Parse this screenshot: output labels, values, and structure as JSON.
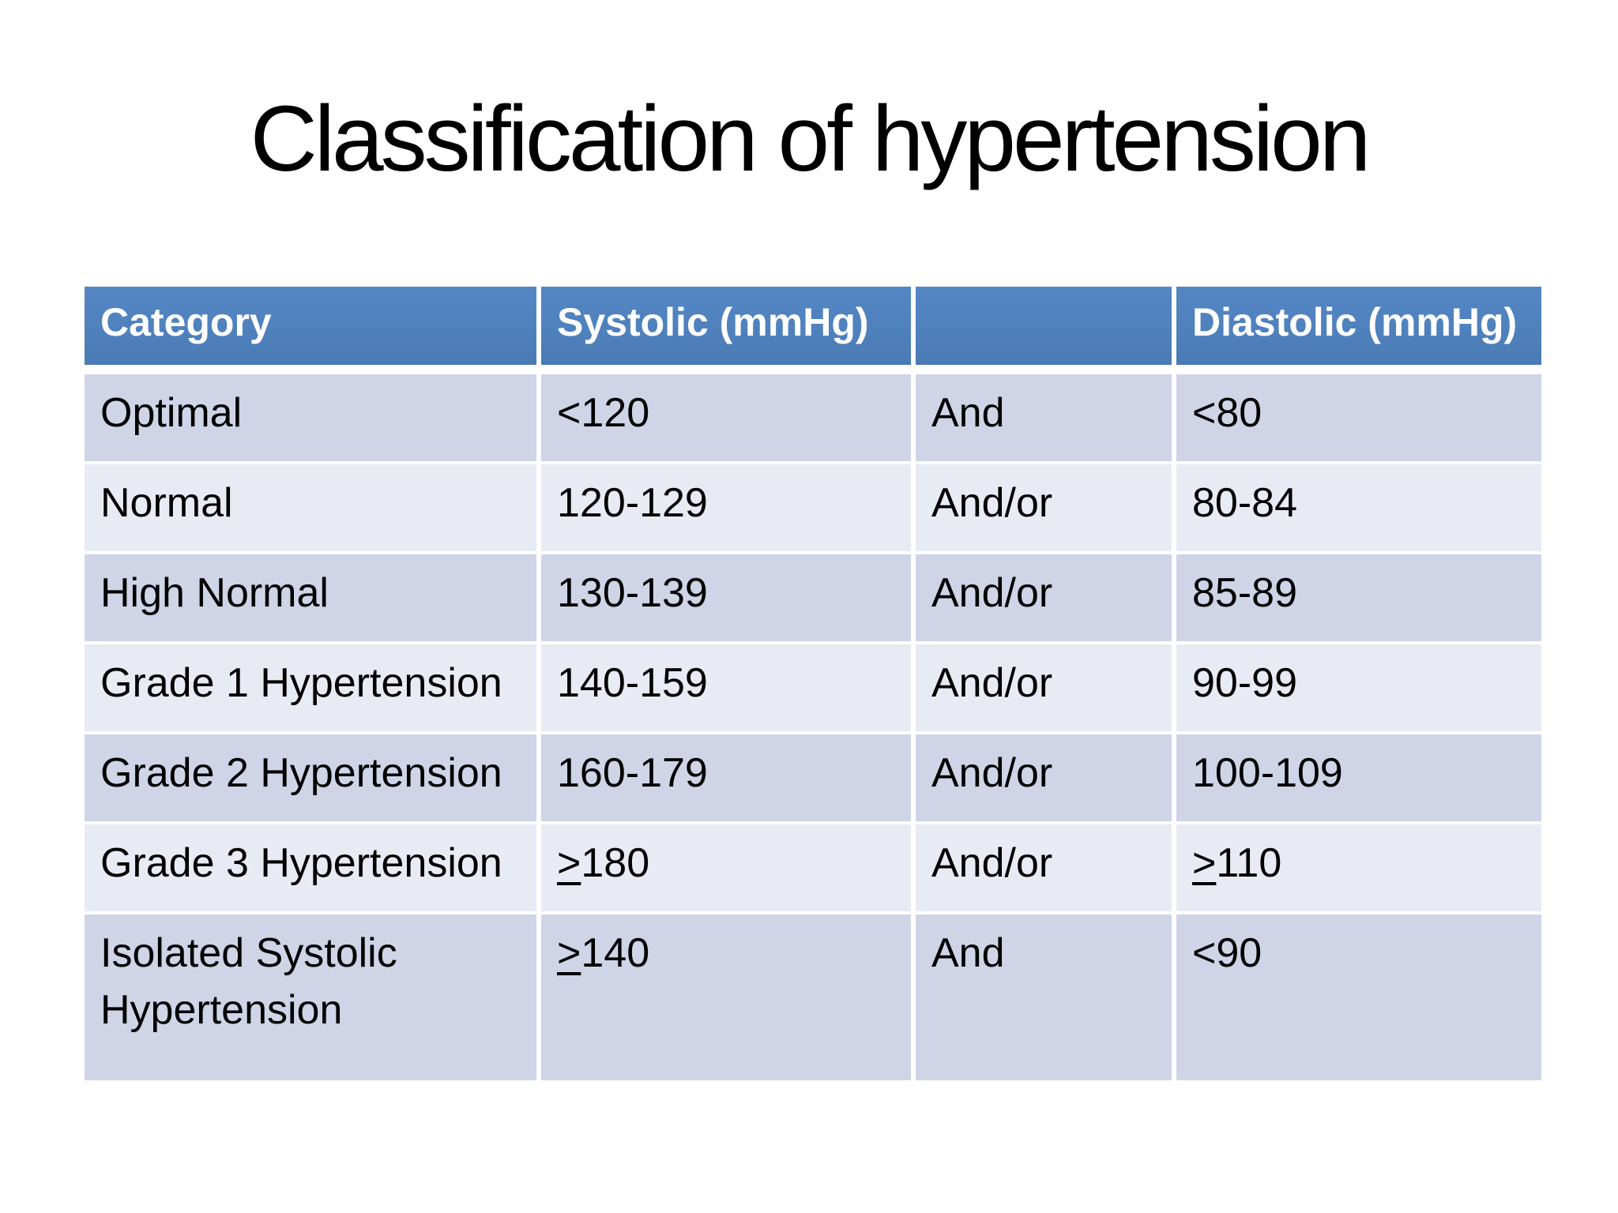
{
  "slide": {
    "title": "Classification of hypertension",
    "background_color": "#ffffff",
    "title_color": "#000000"
  },
  "table": {
    "header_bg": "#4f81bd",
    "header_text_color": "#ffffff",
    "row_band_dark": "#cfd5e7",
    "row_band_light": "#e9ebf4",
    "cell_text_color": "#000000",
    "border_color": "#ffffff",
    "columns": [
      "Category",
      "Systolic (mmHg)",
      "",
      "Diastolic (mmHg)"
    ],
    "rows": [
      {
        "category": "Optimal",
        "systolic": "<120",
        "conjunction": "And",
        "diastolic": "<80"
      },
      {
        "category": "Normal",
        "systolic": "120-129",
        "conjunction": "And/or",
        "diastolic": "80-84"
      },
      {
        "category": "High Normal",
        "systolic": "130-139",
        "conjunction": "And/or",
        "diastolic": "85-89"
      },
      {
        "category": "Grade 1 Hypertension",
        "systolic": "140-159",
        "conjunction": "And/or",
        "diastolic": "90-99"
      },
      {
        "category": "Grade 2 Hypertension",
        "systolic": "160-179",
        "conjunction": "And/or",
        "diastolic": "100-109"
      },
      {
        "category": "Grade 3 Hypertension",
        "systolic": "≥180",
        "conjunction": "And/or",
        "diastolic": "≥110"
      },
      {
        "category": "Isolated Systolic Hypertension",
        "systolic": "≥140",
        "conjunction": "And",
        "diastolic": "<90"
      }
    ]
  }
}
